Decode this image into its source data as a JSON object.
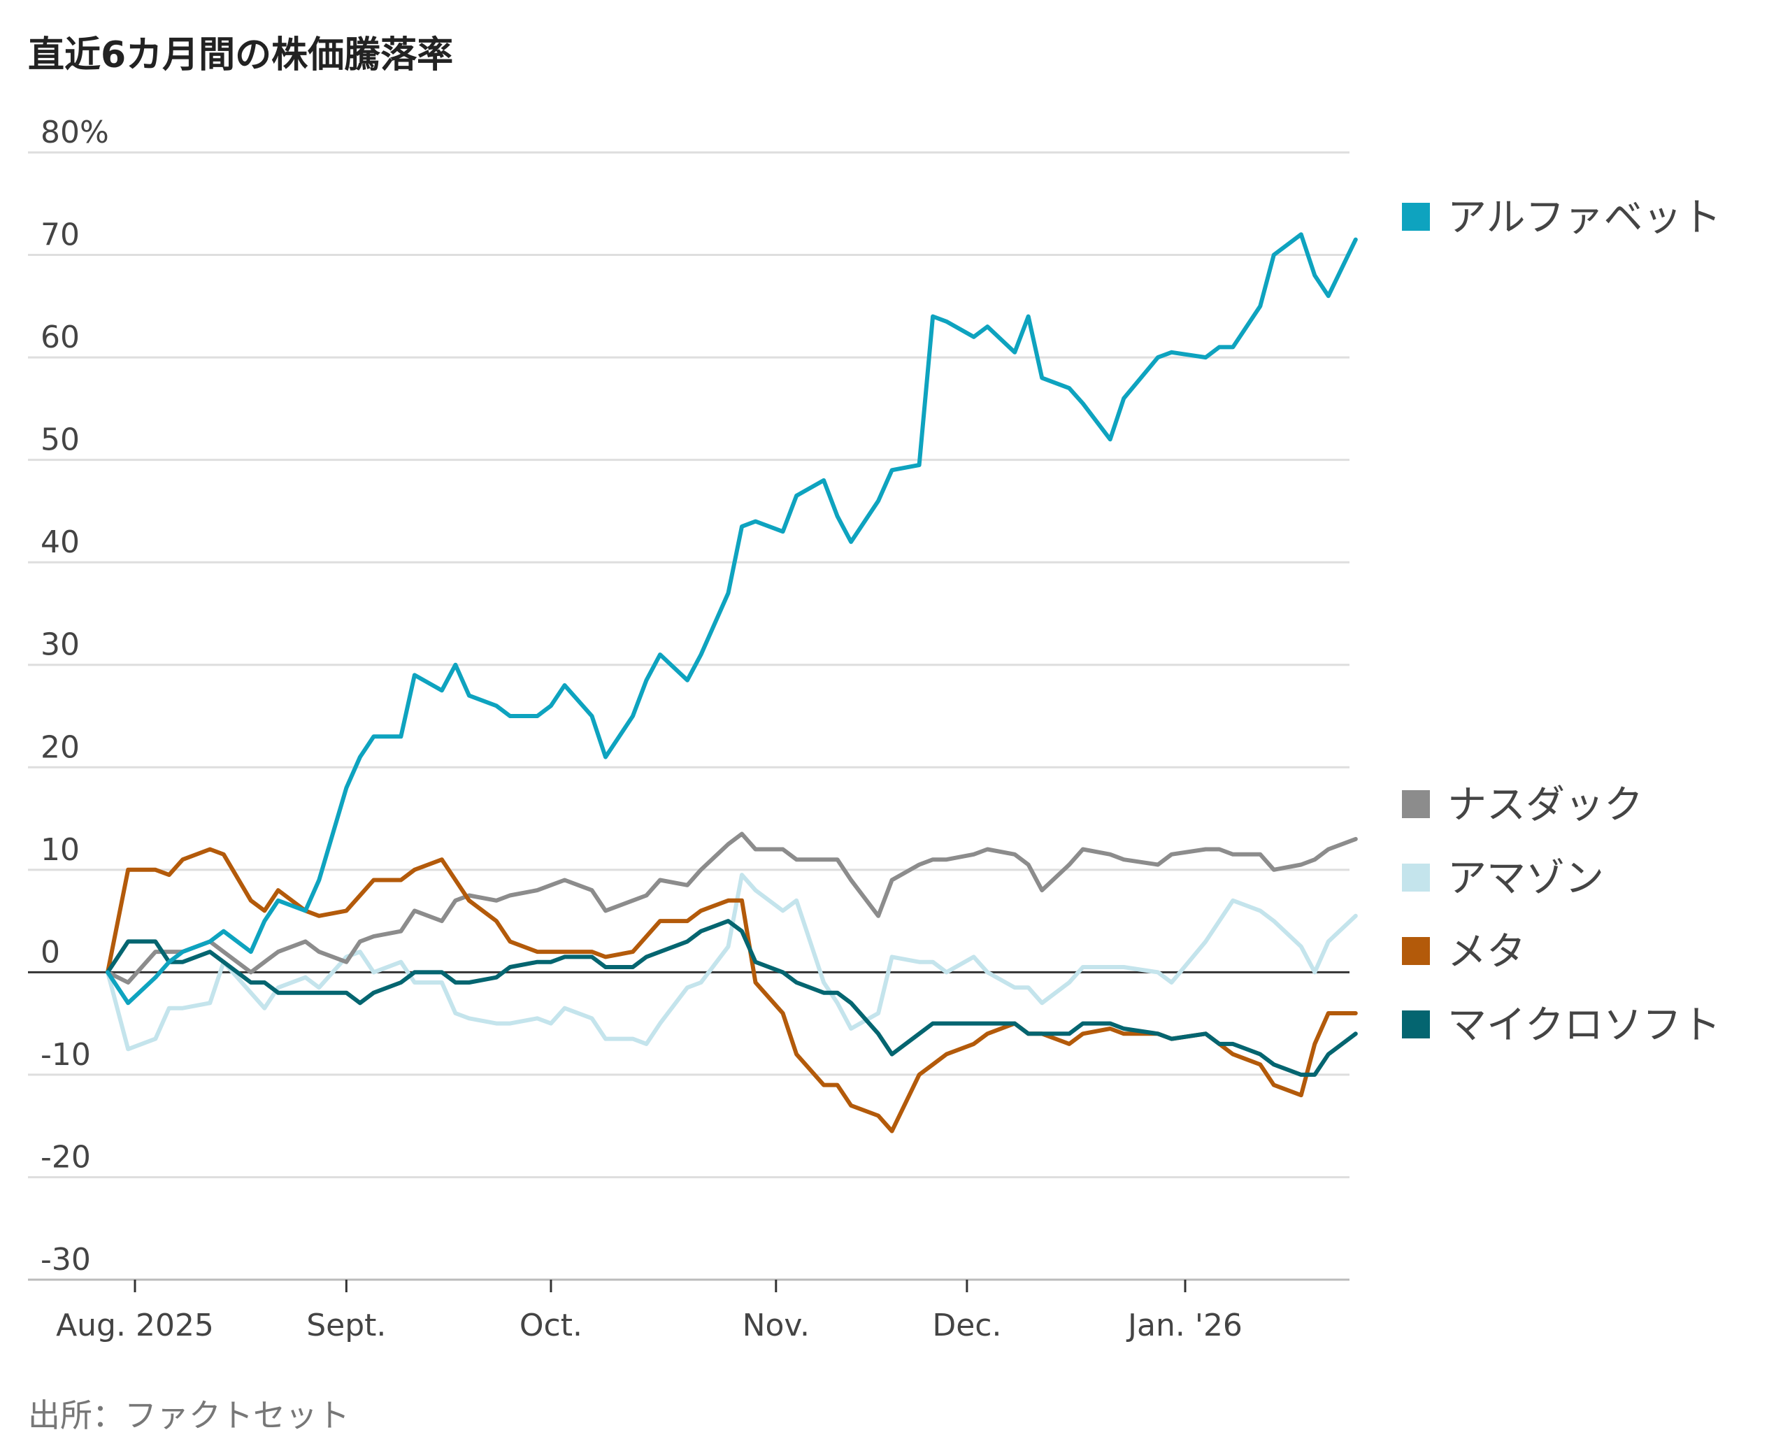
{
  "title": "直近6カ月間の株価騰落率",
  "source": "出所：ファクトセット",
  "chart_data": {
    "type": "line",
    "ylim": [
      -30,
      80
    ],
    "ytick_values": [
      80,
      70,
      60,
      50,
      40,
      30,
      20,
      10,
      0,
      -10,
      -20,
      -30
    ],
    "ytick_labels": [
      "80%",
      "70",
      "60",
      "50",
      "40",
      "30",
      "20",
      "10",
      "0",
      "-10",
      "-20",
      "-30"
    ],
    "grid": true,
    "legend_placement": "right",
    "x_ticks": [
      {
        "label": "Aug. 2025",
        "date": "2025-08-01"
      },
      {
        "label": "Sept.",
        "date": "2025-09-01"
      },
      {
        "label": "Oct.",
        "date": "2025-10-01"
      },
      {
        "label": "Nov.",
        "date": "2025-11-03"
      },
      {
        "label": "Dec.",
        "date": "2025-12-01"
      },
      {
        "label": "Jan. '26",
        "date": "2026-01-02"
      }
    ],
    "x": [
      "2025-07-28",
      "2025-07-31",
      "2025-08-04",
      "2025-08-06",
      "2025-08-08",
      "2025-08-12",
      "2025-08-14",
      "2025-08-18",
      "2025-08-20",
      "2025-08-22",
      "2025-08-26",
      "2025-08-28",
      "2025-09-01",
      "2025-09-03",
      "2025-09-05",
      "2025-09-09",
      "2025-09-11",
      "2025-09-15",
      "2025-09-17",
      "2025-09-19",
      "2025-09-23",
      "2025-09-25",
      "2025-09-29",
      "2025-10-01",
      "2025-10-03",
      "2025-10-07",
      "2025-10-09",
      "2025-10-13",
      "2025-10-15",
      "2025-10-17",
      "2025-10-21",
      "2025-10-23",
      "2025-10-27",
      "2025-10-29",
      "2025-10-31",
      "2025-11-04",
      "2025-11-06",
      "2025-11-10",
      "2025-11-12",
      "2025-11-14",
      "2025-11-18",
      "2025-11-20",
      "2025-11-24",
      "2025-11-26",
      "2025-11-28",
      "2025-12-02",
      "2025-12-04",
      "2025-12-08",
      "2025-12-10",
      "2025-12-12",
      "2025-12-16",
      "2025-12-18",
      "2025-12-22",
      "2025-12-24",
      "2025-12-29",
      "2025-12-31",
      "2026-01-05",
      "2026-01-07",
      "2026-01-09",
      "2026-01-13",
      "2026-01-15",
      "2026-01-19",
      "2026-01-21",
      "2026-01-23",
      "2026-01-27"
    ],
    "series": [
      {
        "name": "アルファベット",
        "color": "#0ea3bf",
        "values": [
          0,
          -3,
          -0.5,
          1,
          2,
          3,
          4,
          2,
          5,
          7,
          6,
          9,
          18,
          21,
          23,
          23,
          29,
          27.5,
          30,
          27,
          26,
          25,
          25,
          26,
          28,
          25,
          21,
          25,
          28.5,
          31,
          28.5,
          31,
          37,
          43.5,
          44,
          43,
          46.5,
          48,
          44.5,
          42,
          46,
          49,
          49.5,
          64,
          63.5,
          62,
          63,
          60.5,
          64,
          58,
          57,
          55.5,
          52,
          56,
          60,
          60.5,
          60,
          61,
          61,
          65,
          70,
          72,
          68,
          66,
          71.5
        ]
      },
      {
        "name": "ナスダック",
        "color": "#8c8c8c",
        "values": [
          0,
          -1,
          2,
          2,
          2,
          3,
          2,
          0,
          1,
          2,
          3,
          2,
          1,
          3,
          3.5,
          4,
          6,
          5,
          7,
          7.5,
          7,
          7.5,
          8,
          8.5,
          9,
          8,
          6,
          7,
          7.5,
          9,
          8.5,
          10,
          12.5,
          13.5,
          12,
          12,
          11,
          11,
          11,
          9,
          5.5,
          9,
          10.5,
          11,
          11,
          11.5,
          12,
          11.5,
          10.5,
          8,
          10.5,
          12,
          11.5,
          11,
          10.5,
          11.5,
          12,
          12,
          11.5,
          11.5,
          10,
          10.5,
          11,
          12,
          13
        ]
      },
      {
        "name": "アマゾン",
        "color": "#c4e4ec",
        "values": [
          0,
          -7.5,
          -6.5,
          -3.5,
          -3.5,
          -3,
          1,
          -2,
          -3.5,
          -1.5,
          -0.5,
          -1.5,
          1.5,
          2,
          0,
          1,
          -1,
          -1,
          -4,
          -4.5,
          -5,
          -5,
          -4.5,
          -5,
          -3.5,
          -4.5,
          -6.5,
          -6.5,
          -7,
          -5,
          -1.5,
          -1,
          2.5,
          9.5,
          8,
          6,
          7,
          -1,
          -3,
          -5.5,
          -4,
          1.5,
          1,
          1,
          0,
          1.5,
          0,
          -1.5,
          -1.5,
          -3,
          -1,
          0.5,
          0.5,
          0.5,
          0,
          -1,
          3,
          5,
          7,
          6,
          5,
          2.5,
          0,
          3,
          5.5
        ]
      },
      {
        "name": "メタ",
        "color": "#b35a0a",
        "values": [
          0,
          10,
          10,
          9.5,
          11,
          12,
          11.5,
          7,
          6,
          8,
          6,
          5.5,
          6,
          7.5,
          9,
          9,
          10,
          11,
          9,
          7,
          5,
          3,
          2,
          2,
          2,
          2,
          1.5,
          2,
          3.5,
          5,
          5,
          6,
          7,
          7,
          -1,
          -4,
          -8,
          -11,
          -11,
          -13,
          -14,
          -15.5,
          -10,
          -9,
          -8,
          -7,
          -6,
          -5,
          -6,
          -6,
          -7,
          -6,
          -5.5,
          -6,
          -6,
          -6.5,
          -6,
          -7,
          -8,
          -9,
          -11,
          -12,
          -7,
          -4,
          -4
        ]
      },
      {
        "name": "マイクロソフト",
        "color": "#046570",
        "values": [
          0,
          3,
          3,
          1,
          1,
          2,
          1,
          -1,
          -1,
          -2,
          -2,
          -2,
          -2,
          -3,
          -2,
          -1,
          0,
          0,
          -1,
          -1,
          -0.5,
          0.5,
          1,
          1,
          1.5,
          1.5,
          0.5,
          0.5,
          1.5,
          2,
          3,
          4,
          5,
          4,
          1,
          0,
          -1,
          -2,
          -2,
          -3,
          -6,
          -8,
          -6,
          -5,
          -5,
          -5,
          -5,
          -5,
          -6,
          -6,
          -6,
          -5,
          -5,
          -5.5,
          -6,
          -6.5,
          -6,
          -7,
          -7,
          -8,
          -9,
          -10,
          -10,
          -8,
          -6
        ]
      }
    ]
  }
}
